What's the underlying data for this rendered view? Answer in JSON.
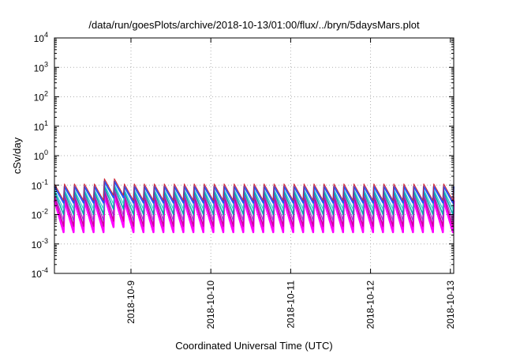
{
  "chart_data": {
    "type": "line",
    "title": "/data/run/goesPlots/archive/2018-10-13/01:00/flux/../bryn/5daysMars.plot",
    "xlabel": "Coordinated Universal Time (UTC)",
    "ylabel": "cSv/day",
    "y_scale": "log",
    "ylim": [
      0.0001,
      10000
    ],
    "y_ticks": [
      {
        "base": "10",
        "exp": "-4"
      },
      {
        "base": "10",
        "exp": "-3"
      },
      {
        "base": "10",
        "exp": "-2"
      },
      {
        "base": "10",
        "exp": "-1"
      },
      {
        "base": "10",
        "exp": "0"
      },
      {
        "base": "10",
        "exp": "1"
      },
      {
        "base": "10",
        "exp": "2"
      },
      {
        "base": "10",
        "exp": "3"
      },
      {
        "base": "10",
        "exp": "4"
      }
    ],
    "xlim": [
      "2018-10-08T01:00",
      "2018-10-13T01:00"
    ],
    "x_ticks": [
      "2018-10-9",
      "2018-10-10",
      "2018-10-11",
      "2018-10-12",
      "2018-10-13"
    ],
    "grid": true,
    "pattern": {
      "period_hours": 3,
      "description": "repeating sawtooth decay per series"
    },
    "series": [
      {
        "color": "#ff00ff",
        "peak": 0.03,
        "trough": 0.0025,
        "width": 2.5
      },
      {
        "color": "#cc0099",
        "peak": 0.04,
        "trough": 0.004,
        "width": 1.5
      },
      {
        "color": "#9933cc",
        "peak": 0.05,
        "trough": 0.006,
        "width": 1.2
      },
      {
        "color": "#00aaaa",
        "peak": 0.06,
        "trough": 0.01,
        "width": 1.5
      },
      {
        "color": "#33cccc",
        "peak": 0.07,
        "trough": 0.015,
        "width": 1.2
      },
      {
        "color": "#2255ff",
        "peak": 0.09,
        "trough": 0.025,
        "width": 2.0
      },
      {
        "color": "#cc2233",
        "peak": 0.11,
        "trough": 0.03,
        "width": 1.0
      }
    ]
  }
}
